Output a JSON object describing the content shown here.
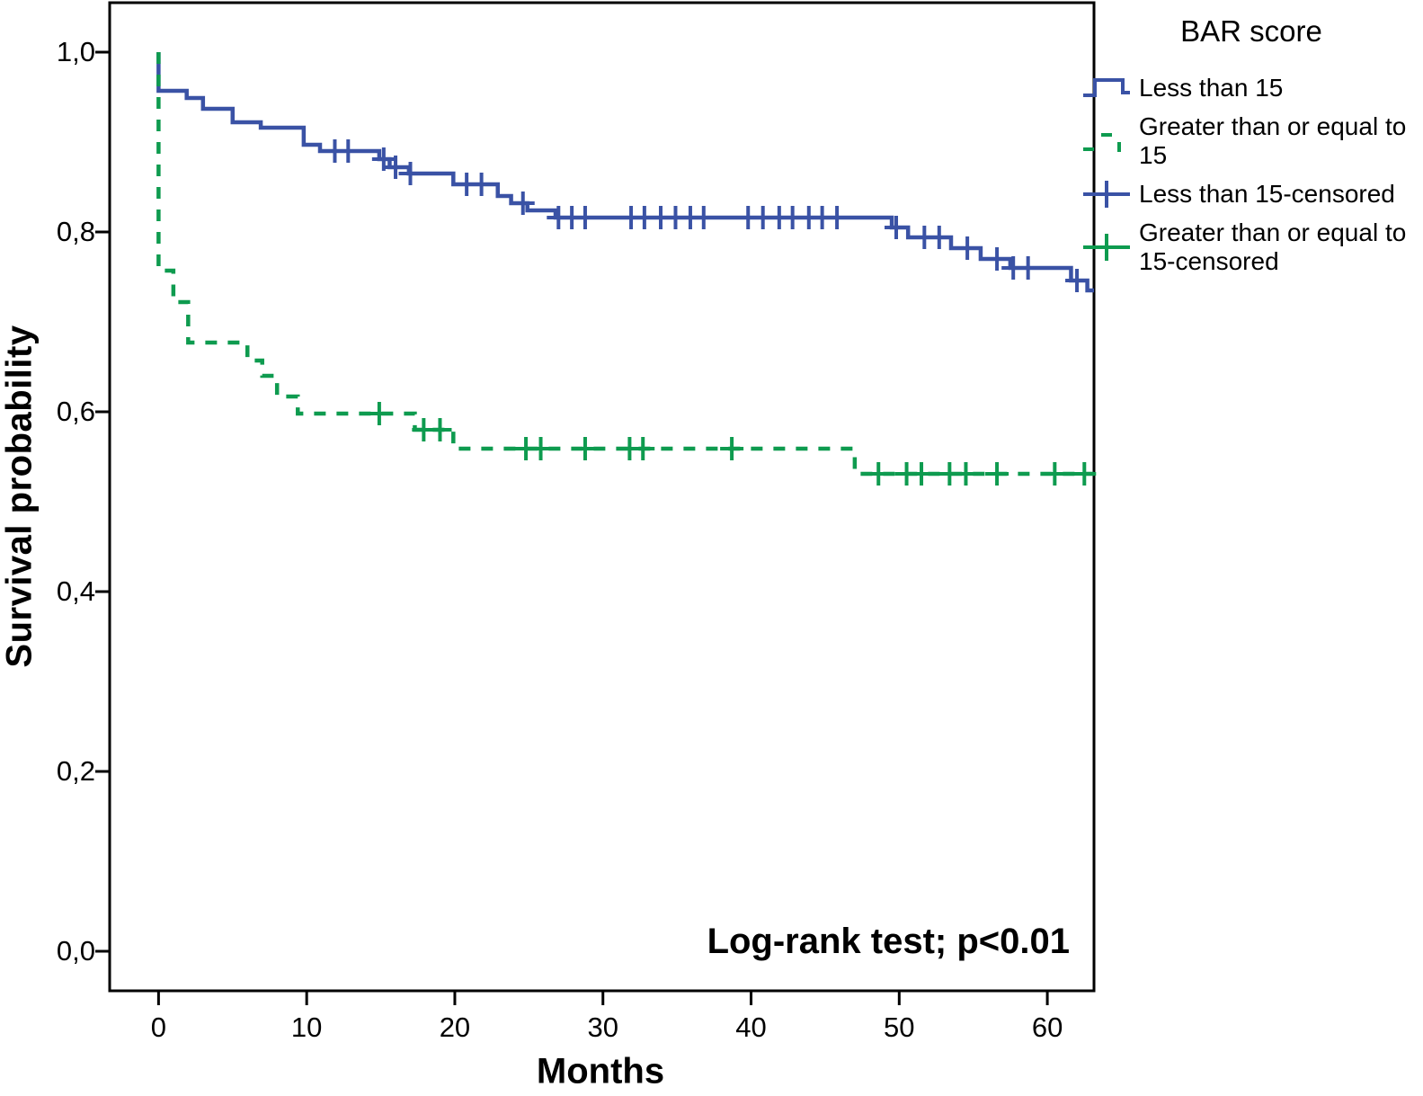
{
  "chart_data": {
    "type": "line",
    "subtype": "kaplan-meier-step",
    "title": "",
    "xlabel": "Months",
    "ylabel": "Survival probability",
    "annotation": "Log-rank test; p<0.01",
    "decimal_separator": ",",
    "xlim": [
      -3.3,
      63.15
    ],
    "ylim": [
      -0.044,
      1.055
    ],
    "grid": false,
    "legend_position": "top-right-outside",
    "x_ticks": [
      {
        "value": 0,
        "label": "0"
      },
      {
        "value": 10,
        "label": "10"
      },
      {
        "value": 20,
        "label": "20"
      },
      {
        "value": 30,
        "label": "30"
      },
      {
        "value": 40,
        "label": "40"
      },
      {
        "value": 50,
        "label": "50"
      },
      {
        "value": 60,
        "label": "60"
      }
    ],
    "y_ticks": [
      {
        "value": 0.0,
        "label": "0,0"
      },
      {
        "value": 0.2,
        "label": "0,2"
      },
      {
        "value": 0.4,
        "label": "0,4"
      },
      {
        "value": 0.6,
        "label": "0,6"
      },
      {
        "value": 0.8,
        "label": "0,8"
      },
      {
        "value": 1.0,
        "label": "1,0"
      }
    ],
    "series": [
      {
        "name": "Less than 15",
        "color": "#3a52a5",
        "style": "solid",
        "steps": [
          [
            0,
            1.0
          ],
          [
            0,
            0.957
          ],
          [
            1.9,
            0.949
          ],
          [
            3.0,
            0.937
          ],
          [
            5.0,
            0.922
          ],
          [
            6.9,
            0.916
          ],
          [
            9.8,
            0.897
          ],
          [
            10.9,
            0.89
          ],
          [
            14.9,
            0.881
          ],
          [
            15.6,
            0.872
          ],
          [
            16.9,
            0.865
          ],
          [
            19.9,
            0.853
          ],
          [
            22.9,
            0.84
          ],
          [
            23.8,
            0.832
          ],
          [
            24.9,
            0.824
          ],
          [
            26.8,
            0.816
          ],
          [
            49.5,
            0.805
          ],
          [
            50.6,
            0.794
          ],
          [
            53.5,
            0.782
          ],
          [
            55.5,
            0.77
          ],
          [
            57.5,
            0.76
          ],
          [
            61.6,
            0.746
          ],
          [
            62.7,
            0.735
          ]
        ],
        "censored": [
          [
            11.9,
            0.89
          ],
          [
            12.8,
            0.89
          ],
          [
            15.2,
            0.881
          ],
          [
            16.0,
            0.872
          ],
          [
            17.0,
            0.865
          ],
          [
            20.8,
            0.853
          ],
          [
            21.8,
            0.853
          ],
          [
            24.6,
            0.832
          ],
          [
            27.0,
            0.816
          ],
          [
            27.9,
            0.816
          ],
          [
            28.8,
            0.816
          ],
          [
            31.9,
            0.816
          ],
          [
            32.8,
            0.816
          ],
          [
            33.9,
            0.816
          ],
          [
            34.9,
            0.816
          ],
          [
            35.9,
            0.816
          ],
          [
            36.8,
            0.816
          ],
          [
            39.8,
            0.816
          ],
          [
            40.8,
            0.816
          ],
          [
            41.9,
            0.816
          ],
          [
            42.8,
            0.816
          ],
          [
            43.9,
            0.816
          ],
          [
            44.8,
            0.816
          ],
          [
            45.8,
            0.816
          ],
          [
            49.8,
            0.805
          ],
          [
            51.7,
            0.794
          ],
          [
            52.7,
            0.794
          ],
          [
            54.6,
            0.782
          ],
          [
            56.6,
            0.77
          ],
          [
            57.7,
            0.76
          ],
          [
            58.7,
            0.76
          ],
          [
            62.0,
            0.746
          ]
        ]
      },
      {
        "name": "Greater than or equal to 15",
        "color": "#0e9b4f",
        "style": "dashed",
        "steps": [
          [
            0,
            1.0
          ],
          [
            0,
            0.757
          ],
          [
            1.0,
            0.722
          ],
          [
            2.0,
            0.677
          ],
          [
            6.0,
            0.657
          ],
          [
            7.0,
            0.64
          ],
          [
            8.0,
            0.617
          ],
          [
            9.4,
            0.598
          ],
          [
            17.3,
            0.58
          ],
          [
            19.9,
            0.559
          ],
          [
            47.0,
            0.531
          ]
        ],
        "censored": [
          [
            14.9,
            0.598
          ],
          [
            17.9,
            0.58
          ],
          [
            19.0,
            0.58
          ],
          [
            24.8,
            0.559
          ],
          [
            25.8,
            0.559
          ],
          [
            28.8,
            0.559
          ],
          [
            31.8,
            0.559
          ],
          [
            32.7,
            0.559
          ],
          [
            38.7,
            0.559
          ],
          [
            48.6,
            0.531
          ],
          [
            50.5,
            0.531
          ],
          [
            51.5,
            0.531
          ],
          [
            53.4,
            0.531
          ],
          [
            54.5,
            0.531
          ],
          [
            56.6,
            0.531
          ],
          [
            60.5,
            0.531
          ],
          [
            62.5,
            0.531
          ]
        ]
      }
    ],
    "legend": {
      "title": "BAR score",
      "items": [
        {
          "label": "Less than 15",
          "marker": "step",
          "color": "#3a52a5"
        },
        {
          "label": "Greater than or equal to 15",
          "marker": "dashed-step",
          "color": "#0e9b4f"
        },
        {
          "label": "Less than 15-censored",
          "marker": "censored",
          "color": "#3a52a5"
        },
        {
          "label": "Greater than or equal to 15-censored",
          "marker": "censored",
          "color": "#0e9b4f"
        }
      ]
    },
    "frame_color": "#000000",
    "background_color": "#ffffff"
  }
}
